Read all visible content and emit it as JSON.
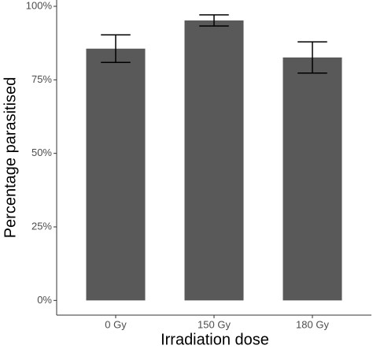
{
  "chart_data": {
    "type": "bar",
    "x_label": "Irradiation dose",
    "y_label": "Percentage parasitised",
    "categories": [
      "0 Gy",
      "150 Gy",
      "180 Gy"
    ],
    "values": [
      85.6,
      95.2,
      82.6
    ],
    "errors": [
      4.7,
      1.9,
      5.3
    ],
    "color": "#595959",
    "ylim": [
      -5,
      100
    ],
    "yticks": [
      {
        "value": 0,
        "label": "0%"
      },
      {
        "value": 25,
        "label": "25%"
      },
      {
        "value": 50,
        "label": "50%"
      },
      {
        "value": 75,
        "label": "75%"
      },
      {
        "value": 100,
        "label": "100%"
      }
    ],
    "grid": false
  }
}
